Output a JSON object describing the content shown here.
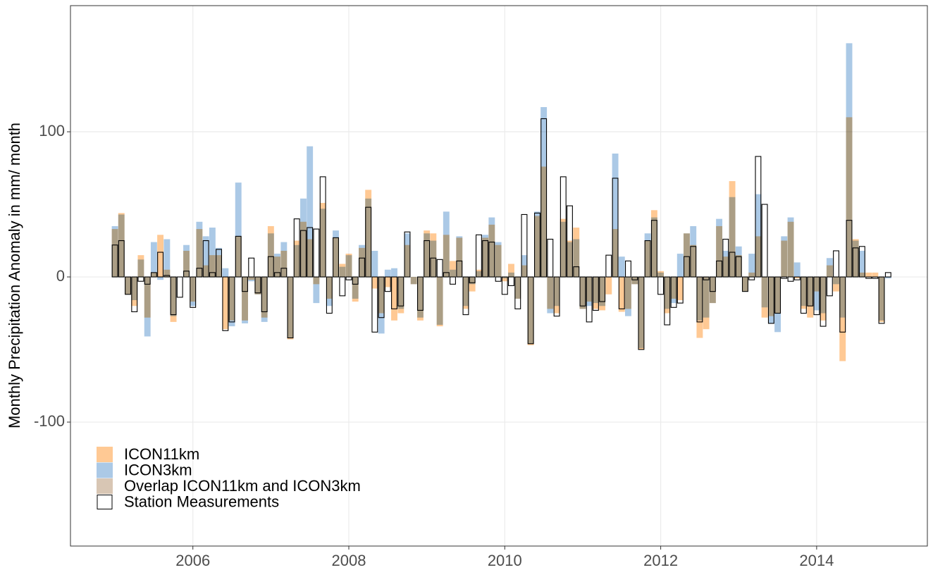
{
  "chart_data": {
    "type": "bar",
    "y_label": "Monthly Precipitation Anomaly in mm/ month",
    "x": [
      2005,
      2005.083,
      2005.167,
      2005.25,
      2005.333,
      2005.417,
      2005.5,
      2005.583,
      2005.667,
      2005.75,
      2005.833,
      2005.917,
      2006,
      2006.083,
      2006.167,
      2006.25,
      2006.333,
      2006.417,
      2006.5,
      2006.583,
      2006.667,
      2006.75,
      2006.833,
      2006.917,
      2007,
      2007.083,
      2007.167,
      2007.25,
      2007.333,
      2007.417,
      2007.5,
      2007.583,
      2007.667,
      2007.75,
      2007.833,
      2007.917,
      2008,
      2008.083,
      2008.167,
      2008.25,
      2008.333,
      2008.417,
      2008.5,
      2008.583,
      2008.667,
      2008.75,
      2008.833,
      2008.917,
      2009,
      2009.083,
      2009.167,
      2009.25,
      2009.333,
      2009.417,
      2009.5,
      2009.583,
      2009.667,
      2009.75,
      2009.833,
      2009.917,
      2010,
      2010.083,
      2010.167,
      2010.25,
      2010.333,
      2010.417,
      2010.5,
      2010.583,
      2010.667,
      2010.75,
      2010.833,
      2010.917,
      2011,
      2011.083,
      2011.167,
      2011.25,
      2011.333,
      2011.417,
      2011.5,
      2011.583,
      2011.667,
      2011.75,
      2011.833,
      2011.917,
      2012,
      2012.083,
      2012.167,
      2012.25,
      2012.333,
      2012.417,
      2012.5,
      2012.583,
      2012.667,
      2012.75,
      2012.833,
      2012.917,
      2013,
      2013.083,
      2013.167,
      2013.25,
      2013.333,
      2013.417,
      2013.5,
      2013.583,
      2013.667,
      2013.75,
      2013.833,
      2013.917,
      2014,
      2014.083,
      2014.167,
      2014.25,
      2014.333,
      2014.417,
      2014.5,
      2014.583,
      2014.667,
      2014.75,
      2014.833,
      2014.917
    ],
    "series": [
      {
        "name": "ICON11km",
        "color": "#ffc994",
        "values": [
          33,
          44,
          -12,
          -20,
          15,
          -28,
          3,
          29,
          5,
          -31,
          0,
          18,
          -17,
          33,
          8,
          15,
          15,
          -36,
          -30,
          28,
          -30,
          -2,
          -12,
          -28,
          35,
          14,
          18,
          -43,
          25,
          38,
          26,
          -5,
          51,
          -15,
          27,
          9,
          16,
          -17,
          20,
          60,
          -8,
          -25,
          -7,
          -30,
          -25,
          22,
          -5,
          -30,
          32,
          30,
          -34,
          29,
          11,
          27,
          -22,
          -10,
          5,
          27,
          36,
          22,
          -3,
          9,
          -15,
          8,
          -47,
          42,
          76,
          -22,
          -25,
          40,
          25,
          34,
          -22,
          -17,
          -22,
          -23,
          -12,
          33,
          -24,
          -22,
          -5,
          -50,
          25,
          46,
          4,
          -25,
          -15,
          -16,
          30,
          22,
          -42,
          -36,
          -18,
          35,
          14,
          66,
          15,
          -10,
          3,
          28,
          -28,
          -27,
          -25,
          25,
          38,
          -1,
          -22,
          -28,
          -10,
          -30,
          8,
          -10,
          -58,
          110,
          26,
          3,
          3,
          3,
          -31,
          0
        ]
      },
      {
        "name": "ICON3km",
        "color": "#abc9e6",
        "values": [
          35,
          43,
          -12,
          -16,
          12,
          -41,
          24,
          -2,
          26,
          -27,
          0,
          22,
          -20,
          38,
          28,
          34,
          20,
          6,
          -34,
          65,
          -32,
          -3,
          -12,
          -31,
          30,
          16,
          24,
          -42,
          22,
          54,
          90,
          -18,
          47,
          -20,
          32,
          7,
          15,
          -15,
          22,
          54,
          18,
          -39,
          5,
          6,
          -22,
          30,
          -5,
          -28,
          30,
          25,
          -33,
          45,
          5,
          28,
          -20,
          -5,
          4,
          29,
          41,
          24,
          -1,
          3,
          -15,
          15,
          -46,
          45,
          117,
          -25,
          -20,
          38,
          24,
          26,
          -22,
          -20,
          -18,
          -20,
          0,
          85,
          14,
          -27,
          -5,
          -49,
          30,
          41,
          3,
          -22,
          -18,
          16,
          30,
          35,
          -30,
          -28,
          -18,
          40,
          18,
          55,
          21,
          -10,
          16,
          57,
          -21,
          -32,
          -38,
          28,
          41,
          10,
          -20,
          -20,
          -23,
          -25,
          13,
          -5,
          -28,
          161,
          25,
          18,
          0,
          0,
          -30,
          -1
        ]
      },
      {
        "name": "Station Measurements",
        "color": "#000000",
        "values": [
          22,
          25,
          -12,
          -24,
          -3,
          -5,
          3,
          17,
          1,
          -26,
          -14,
          4,
          -21,
          6,
          25,
          3,
          19,
          -37,
          -31,
          28,
          -10,
          13,
          -11,
          -24,
          14,
          3,
          6,
          -42,
          40,
          32,
          34,
          33,
          69,
          -25,
          27,
          -13,
          -2,
          -5,
          13,
          48,
          -38,
          -28,
          -10,
          -22,
          -20,
          31,
          0,
          -23,
          25,
          13,
          12,
          3,
          -5,
          11,
          -26,
          -4,
          29,
          25,
          24,
          -3,
          -12,
          -6,
          -22,
          43,
          -46,
          44,
          109,
          26,
          -27,
          69,
          49,
          7,
          -20,
          -31,
          -23,
          -17,
          15,
          68,
          -22,
          11,
          -2,
          -50,
          25,
          39,
          -12,
          -33,
          -21,
          -18,
          14,
          21,
          -31,
          -2,
          -10,
          11,
          26,
          17,
          14,
          -10,
          -2,
          83,
          50,
          -32,
          -25,
          -1,
          -3,
          -2,
          -25,
          -20,
          -26,
          -34,
          -13,
          18,
          -38,
          39,
          20,
          21,
          -1,
          -1,
          -32,
          3
        ]
      }
    ],
    "overlap": {
      "name": "Overlap ICON11km and ICON3km",
      "color": "#d8c6b4"
    },
    "xlim": [
      2004.43,
      2015.42
    ],
    "xticks": [
      2006,
      2008,
      2010,
      2012,
      2014
    ],
    "ylim": [
      -185.4,
      186.9
    ],
    "yticks": [
      -100,
      0,
      100
    ],
    "grid": true
  }
}
